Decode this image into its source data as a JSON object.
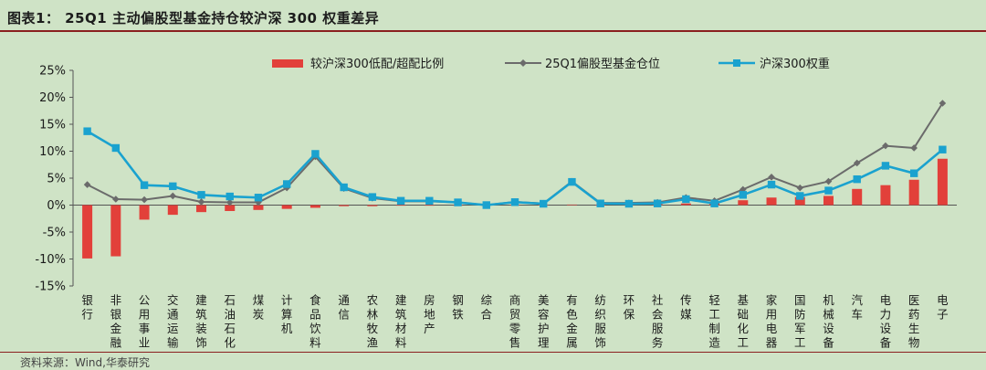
{
  "header": {
    "title": "图表1： 25Q1 主动偏股型基金持仓较沪深 300 权重差异"
  },
  "footer": {
    "source": "资料来源：Wind,华泰研究"
  },
  "colors": {
    "bar": "#e2403a",
    "fund_line": "#6b6b6b",
    "hs300_line": "#1aa2cf",
    "axis": "#555555"
  },
  "chart_data": {
    "type": "bar",
    "title": "",
    "xlabel": "",
    "ylabel": "",
    "ylim": [
      -15,
      25
    ],
    "yticks": [
      25,
      20,
      15,
      10,
      5,
      0,
      -5,
      -10,
      -15
    ],
    "ytick_labels": [
      "25%",
      "20%",
      "15%",
      "10%",
      "5%",
      "0%",
      "-5%",
      "-10%",
      "-15%"
    ],
    "grid": false,
    "legend_position": "top",
    "categories": [
      "银行",
      "非银金融",
      "公用事业",
      "交通运输",
      "建筑装饰",
      "石油石化",
      "煤炭",
      "计算机",
      "食品饮料",
      "通信",
      "农林牧渔",
      "建筑材料",
      "房地产",
      "钢铁",
      "综合",
      "商贸零售",
      "美容护理",
      "有色金属",
      "纺织服饰",
      "环保",
      "社会服务",
      "传媒",
      "轻工制造",
      "基础化工",
      "家用电器",
      "国防军工",
      "机械设备",
      "汽车",
      "电力设备",
      "医药生物",
      "电子"
    ],
    "series": [
      {
        "name": "较沪深300低配/超配比例",
        "kind": "bar",
        "values": [
          -9.9,
          -9.5,
          -2.7,
          -1.8,
          -1.3,
          -1.1,
          -0.9,
          -0.7,
          -0.5,
          -0.2,
          -0.2,
          -0.1,
          -0.1,
          0.0,
          0.0,
          0.05,
          0.05,
          0.1,
          0.05,
          0.1,
          0.2,
          0.3,
          0.4,
          0.9,
          1.4,
          1.5,
          1.7,
          3.0,
          3.7,
          4.7,
          8.6
        ]
      },
      {
        "name": "25Q1偏股型基金仓位",
        "kind": "line",
        "values": [
          3.8,
          1.1,
          1.0,
          1.7,
          0.6,
          0.5,
          0.5,
          3.2,
          9.0,
          3.1,
          1.3,
          0.7,
          0.7,
          0.5,
          0.0,
          0.6,
          0.3,
          4.4,
          0.4,
          0.4,
          0.5,
          1.4,
          0.8,
          2.9,
          5.2,
          3.2,
          4.4,
          7.8,
          11.0,
          10.6,
          18.9
        ]
      },
      {
        "name": "沪深300权重",
        "kind": "line",
        "values": [
          13.7,
          10.6,
          3.7,
          3.5,
          1.9,
          1.6,
          1.4,
          3.9,
          9.5,
          3.3,
          1.5,
          0.8,
          0.8,
          0.5,
          0.0,
          0.55,
          0.25,
          4.3,
          0.3,
          0.25,
          0.3,
          1.1,
          0.3,
          1.9,
          3.8,
          1.7,
          2.7,
          4.8,
          7.3,
          5.9,
          10.3
        ]
      }
    ]
  }
}
